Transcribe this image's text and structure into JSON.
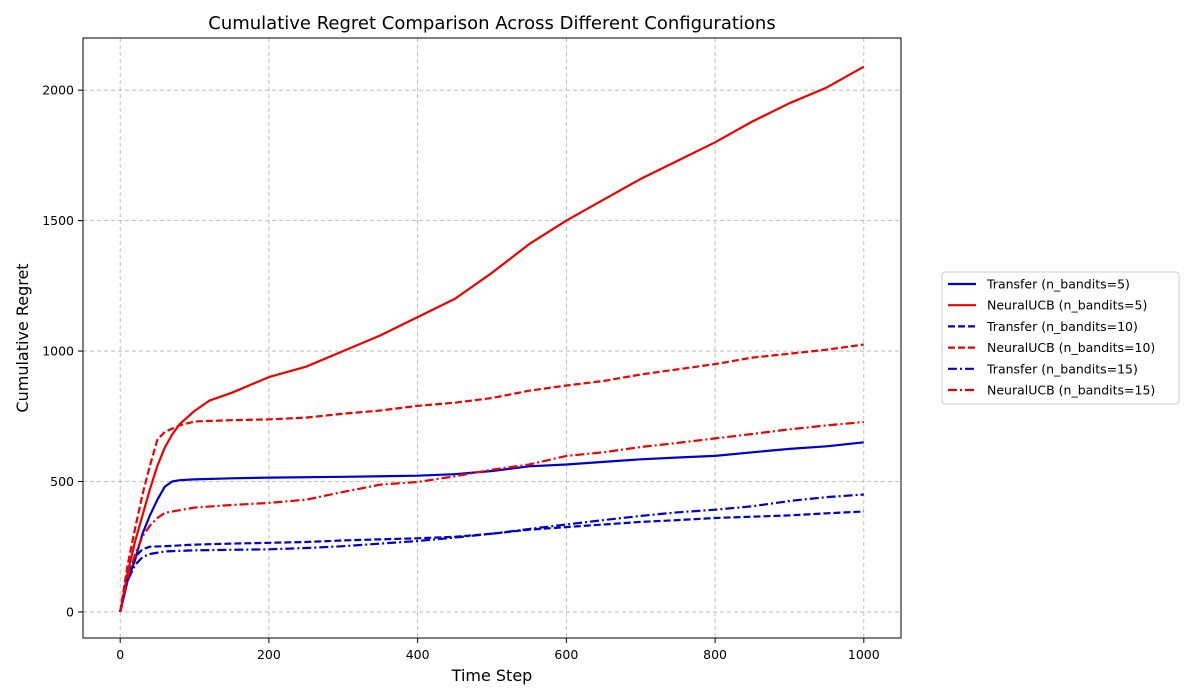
{
  "chart_data": {
    "type": "line",
    "title": "Cumulative Regret Comparison Across Different Configurations",
    "xlabel": "Time Step",
    "ylabel": "Cumulative Regret",
    "xlim": [
      -50,
      1050
    ],
    "ylim": [
      -100,
      2200
    ],
    "xticks": [
      0,
      200,
      400,
      600,
      800,
      1000
    ],
    "yticks": [
      0,
      500,
      1000,
      1500,
      2000
    ],
    "grid": true,
    "legend_position": "right-outside",
    "series": [
      {
        "name": "Transfer (n_bandits=5)",
        "color": "#0000cc",
        "dash": "solid",
        "points": [
          [
            0,
            0
          ],
          [
            10,
            120
          ],
          [
            20,
            200
          ],
          [
            30,
            300
          ],
          [
            40,
            370
          ],
          [
            50,
            430
          ],
          [
            60,
            480
          ],
          [
            70,
            500
          ],
          [
            80,
            505
          ],
          [
            100,
            508
          ],
          [
            150,
            512
          ],
          [
            200,
            515
          ],
          [
            300,
            518
          ],
          [
            400,
            522
          ],
          [
            450,
            528
          ],
          [
            500,
            540
          ],
          [
            550,
            558
          ],
          [
            600,
            565
          ],
          [
            650,
            575
          ],
          [
            700,
            585
          ],
          [
            750,
            592
          ],
          [
            800,
            598
          ],
          [
            850,
            612
          ],
          [
            900,
            625
          ],
          [
            950,
            635
          ],
          [
            1000,
            650
          ]
        ]
      },
      {
        "name": "NeuralUCB (n_bandits=5)",
        "color": "#ee0000",
        "dash": "solid",
        "points": [
          [
            0,
            0
          ],
          [
            10,
            150
          ],
          [
            20,
            270
          ],
          [
            30,
            370
          ],
          [
            40,
            470
          ],
          [
            50,
            560
          ],
          [
            60,
            630
          ],
          [
            70,
            680
          ],
          [
            80,
            720
          ],
          [
            100,
            770
          ],
          [
            120,
            810
          ],
          [
            150,
            840
          ],
          [
            200,
            900
          ],
          [
            250,
            940
          ],
          [
            300,
            1000
          ],
          [
            350,
            1060
          ],
          [
            400,
            1130
          ],
          [
            450,
            1200
          ],
          [
            500,
            1300
          ],
          [
            550,
            1410
          ],
          [
            600,
            1500
          ],
          [
            650,
            1580
          ],
          [
            700,
            1660
          ],
          [
            750,
            1730
          ],
          [
            800,
            1800
          ],
          [
            850,
            1880
          ],
          [
            900,
            1950
          ],
          [
            950,
            2010
          ],
          [
            1000,
            2090
          ]
        ]
      },
      {
        "name": "Transfer (n_bandits=10)",
        "color": "#0000cc",
        "dash": "dashed",
        "points": [
          [
            0,
            0
          ],
          [
            10,
            130
          ],
          [
            20,
            210
          ],
          [
            30,
            240
          ],
          [
            40,
            250
          ],
          [
            60,
            252
          ],
          [
            100,
            258
          ],
          [
            150,
            262
          ],
          [
            200,
            265
          ],
          [
            250,
            268
          ],
          [
            300,
            274
          ],
          [
            400,
            282
          ],
          [
            450,
            288
          ],
          [
            500,
            300
          ],
          [
            550,
            315
          ],
          [
            600,
            325
          ],
          [
            650,
            335
          ],
          [
            700,
            345
          ],
          [
            750,
            352
          ],
          [
            800,
            360
          ],
          [
            850,
            365
          ],
          [
            900,
            370
          ],
          [
            950,
            378
          ],
          [
            1000,
            385
          ]
        ]
      },
      {
        "name": "NeuralUCB (n_bandits=10)",
        "color": "#ee0000",
        "dash": "dashed",
        "points": [
          [
            0,
            0
          ],
          [
            10,
            180
          ],
          [
            20,
            320
          ],
          [
            30,
            450
          ],
          [
            40,
            560
          ],
          [
            50,
            660
          ],
          [
            60,
            690
          ],
          [
            80,
            715
          ],
          [
            100,
            730
          ],
          [
            150,
            735
          ],
          [
            200,
            738
          ],
          [
            250,
            745
          ],
          [
            300,
            760
          ],
          [
            350,
            772
          ],
          [
            400,
            790
          ],
          [
            450,
            802
          ],
          [
            500,
            820
          ],
          [
            550,
            848
          ],
          [
            600,
            868
          ],
          [
            650,
            885
          ],
          [
            700,
            910
          ],
          [
            750,
            930
          ],
          [
            800,
            950
          ],
          [
            850,
            975
          ],
          [
            900,
            990
          ],
          [
            950,
            1005
          ],
          [
            1000,
            1025
          ]
        ]
      },
      {
        "name": "Transfer (n_bandits=15)",
        "color": "#0000cc",
        "dash": "dashdot",
        "points": [
          [
            0,
            0
          ],
          [
            10,
            120
          ],
          [
            20,
            180
          ],
          [
            30,
            210
          ],
          [
            40,
            222
          ],
          [
            60,
            232
          ],
          [
            100,
            236
          ],
          [
            150,
            238
          ],
          [
            200,
            240
          ],
          [
            250,
            245
          ],
          [
            300,
            252
          ],
          [
            350,
            262
          ],
          [
            400,
            272
          ],
          [
            450,
            285
          ],
          [
            500,
            300
          ],
          [
            550,
            318
          ],
          [
            600,
            335
          ],
          [
            650,
            352
          ],
          [
            700,
            368
          ],
          [
            750,
            382
          ],
          [
            800,
            392
          ],
          [
            850,
            405
          ],
          [
            900,
            425
          ],
          [
            950,
            440
          ],
          [
            1000,
            450
          ]
        ]
      },
      {
        "name": "NeuralUCB (n_bandits=15)",
        "color": "#ee0000",
        "dash": "dashdot",
        "points": [
          [
            0,
            0
          ],
          [
            10,
            130
          ],
          [
            20,
            220
          ],
          [
            30,
            290
          ],
          [
            40,
            330
          ],
          [
            50,
            360
          ],
          [
            60,
            380
          ],
          [
            80,
            390
          ],
          [
            100,
            400
          ],
          [
            150,
            410
          ],
          [
            200,
            418
          ],
          [
            250,
            430
          ],
          [
            300,
            460
          ],
          [
            350,
            488
          ],
          [
            400,
            498
          ],
          [
            450,
            520
          ],
          [
            500,
            545
          ],
          [
            550,
            565
          ],
          [
            600,
            598
          ],
          [
            650,
            612
          ],
          [
            700,
            632
          ],
          [
            750,
            648
          ],
          [
            800,
            665
          ],
          [
            850,
            682
          ],
          [
            900,
            700
          ],
          [
            950,
            715
          ],
          [
            1000,
            728
          ]
        ]
      }
    ]
  }
}
